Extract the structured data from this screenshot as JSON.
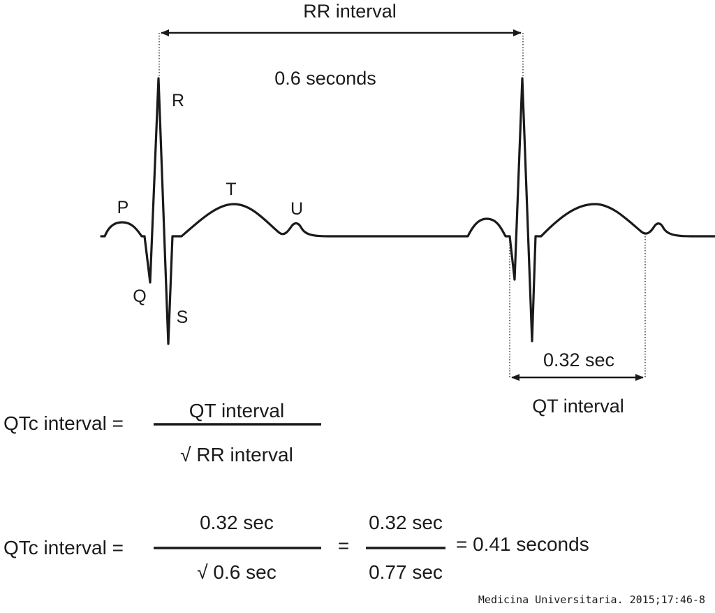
{
  "rr": {
    "label": "RR interval",
    "value": "0.6 seconds"
  },
  "qt": {
    "label": "QT interval",
    "value": "0.32 sec"
  },
  "waves": {
    "p": "P",
    "q": "Q",
    "r": "R",
    "s": "S",
    "t": "T",
    "u": "U"
  },
  "formula1": {
    "lhs": "QTc interval =",
    "numerator": "QT interval",
    "denominator": "√ RR interval"
  },
  "formula2": {
    "lhs": "QTc interval =",
    "numerator": "0.32 sec",
    "denominator": "√ 0.6 sec",
    "equals": "=",
    "numerator2": "0.32 sec",
    "denominator2": "0.77 sec",
    "result": "= 0.41 seconds"
  },
  "citation": "Medicina Universitaria. 2015;17:46-8"
}
